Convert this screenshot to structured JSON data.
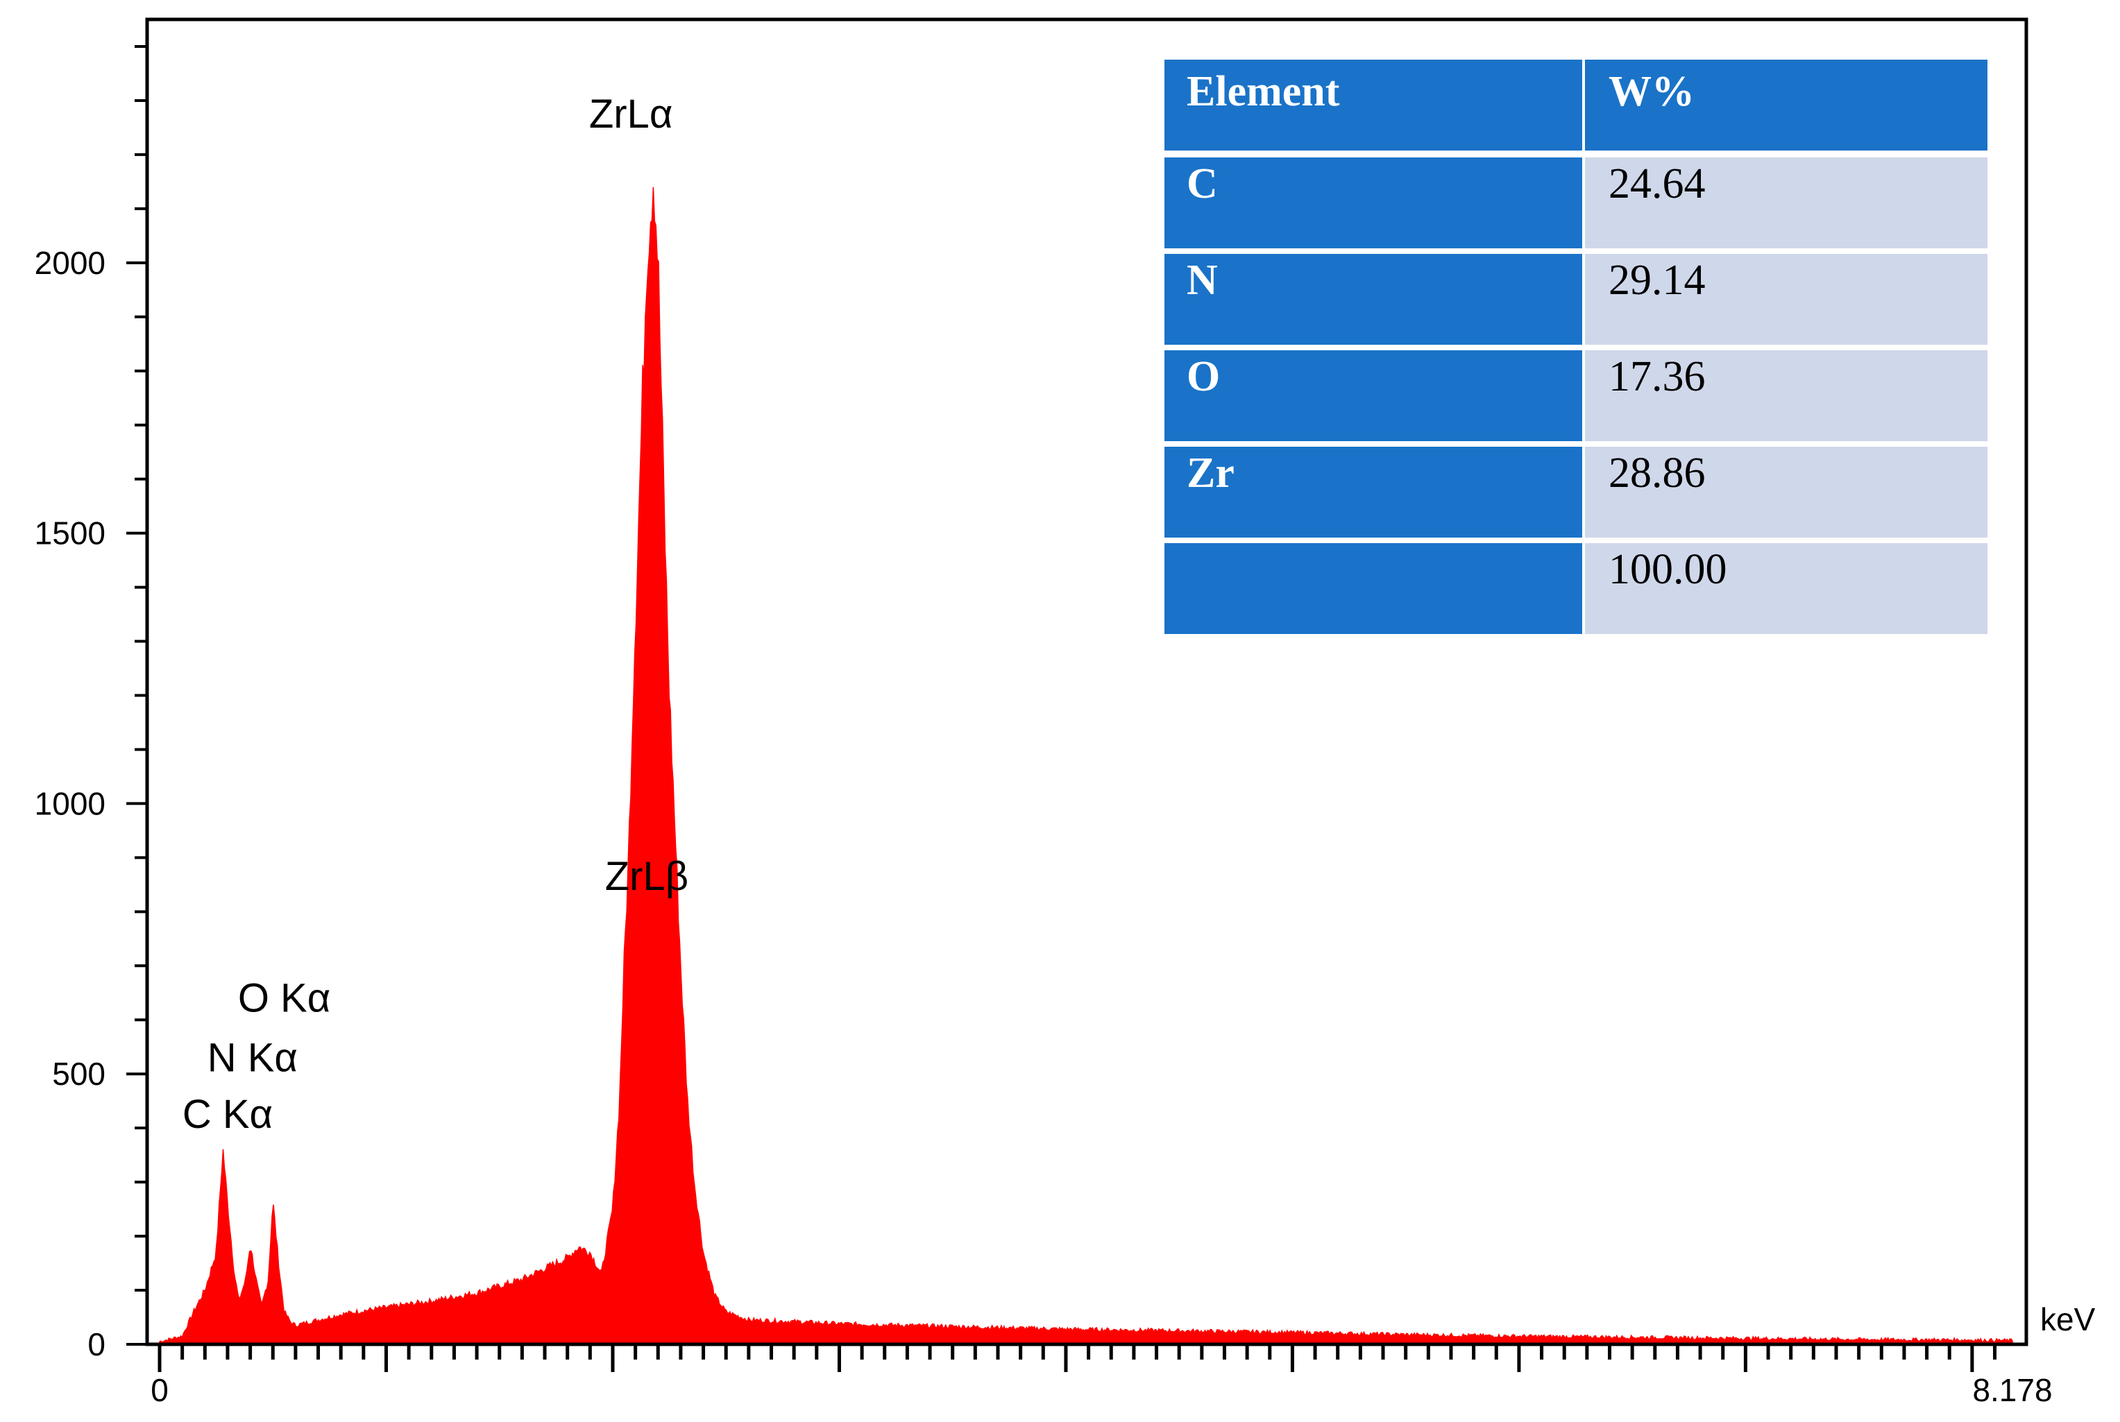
{
  "chart_data": {
    "type": "line",
    "style": "filled-spectrum",
    "color": "#ff0000",
    "xlabel": "keV",
    "ylabel": "",
    "xlim": [
      0,
      8.178
    ],
    "ylim": [
      0,
      2450
    ],
    "x_tick_labels": [
      "0",
      "8.178"
    ],
    "y_tick_labels": [
      {
        "value": 0,
        "label": "0"
      },
      {
        "value": 500,
        "label": "500"
      },
      {
        "value": 1000,
        "label": "1000"
      },
      {
        "value": 1500,
        "label": "1500"
      },
      {
        "value": 2000,
        "label": "2000"
      }
    ],
    "series": [
      {
        "x": [
          0.0,
          0.05,
          0.1,
          0.15,
          0.2,
          0.25,
          0.28,
          0.3,
          0.33,
          0.35,
          0.38,
          0.4,
          0.43,
          0.45,
          0.48,
          0.5,
          0.53,
          0.55,
          0.58,
          0.6,
          0.65,
          0.7,
          0.8,
          0.9,
          1.0,
          1.2,
          1.4,
          1.6,
          1.7,
          1.8,
          1.85,
          1.9,
          1.95,
          2.0,
          2.03,
          2.05,
          2.07,
          2.09,
          2.12,
          2.15,
          2.18,
          2.2,
          2.23,
          2.25,
          2.28,
          2.3,
          2.33,
          2.36,
          2.4,
          2.45,
          2.5,
          2.6,
          2.8,
          3.0,
          3.5,
          4.0,
          4.5,
          5.0,
          5.5,
          6.0,
          6.5,
          7.0,
          7.5,
          8.0,
          8.178
        ],
        "y": [
          5,
          10,
          15,
          60,
          100,
          170,
          360,
          260,
          130,
          80,
          120,
          185,
          110,
          70,
          120,
          265,
          130,
          60,
          40,
          35,
          40,
          45,
          55,
          62,
          68,
          80,
          95,
          120,
          140,
          160,
          180,
          170,
          130,
          250,
          450,
          700,
          900,
          1200,
          1600,
          2000,
          2170,
          2000,
          1500,
          1200,
          900,
          700,
          450,
          300,
          170,
          90,
          60,
          45,
          42,
          38,
          33,
          28,
          25,
          22,
          18,
          15,
          13,
          11,
          9,
          8,
          7
        ]
      }
    ],
    "annotations": [
      {
        "text": "ZrLα",
        "x": 2.08,
        "y": 2250
      },
      {
        "text": "ZrLβ",
        "x": 2.15,
        "y": 840
      },
      {
        "text": "O Kα",
        "x": 0.55,
        "y": 615
      },
      {
        "text": "N Kα",
        "x": 0.41,
        "y": 505
      },
      {
        "text": "C Kα",
        "x": 0.3,
        "y": 400
      }
    ],
    "table": {
      "columns": [
        "Element",
        "W%"
      ],
      "rows": [
        [
          "C",
          "24.64"
        ],
        [
          "N",
          "29.14"
        ],
        [
          "O",
          "17.36"
        ],
        [
          "Zr",
          "28.86"
        ],
        [
          "",
          "100.00"
        ]
      ],
      "header_color": "#1a73c8",
      "element_cell_color": "#1a73c8",
      "value_cell_color": "#cfd7ea",
      "placement": "top-right"
    }
  }
}
